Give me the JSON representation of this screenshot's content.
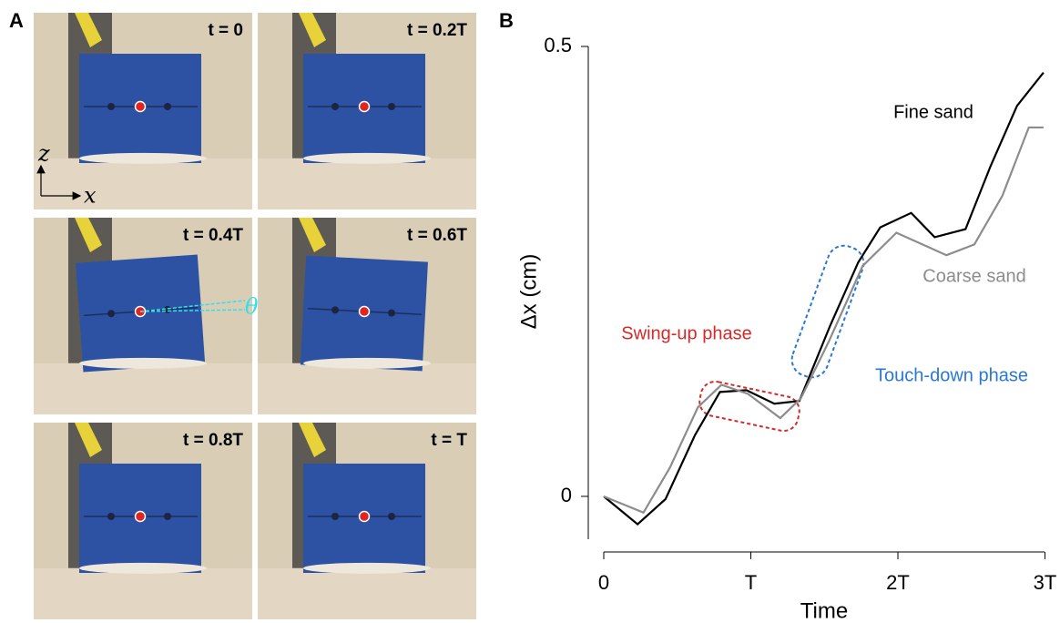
{
  "panel_labels": [
    "A",
    "B"
  ],
  "photos": {
    "labels": [
      "t = 0",
      "t = 0.2T",
      "t = 0.4T",
      "t = 0.6T",
      "t = 0.8T",
      "t = T"
    ],
    "axis_labels": [
      "z",
      "x"
    ],
    "angle_label": "θ"
  },
  "chart_data": {
    "type": "line",
    "xlabel": "Time",
    "ylabel": "Δx (cm)",
    "xlim": [
      0,
      3
    ],
    "xticks": [
      0,
      {
        "value": 1,
        "label": "T"
      },
      {
        "value": 2,
        "label": "2T"
      },
      {
        "value": 3,
        "label": "3T"
      }
    ],
    "ylim": [
      -0.047,
      0.5
    ],
    "yticks": [
      0,
      0.5
    ],
    "series": [
      {
        "name": "Fine sand",
        "color": "#000000",
        "x": [
          0,
          0.23,
          0.42,
          0.62,
          0.79,
          0.97,
          1.16,
          1.33,
          1.54,
          1.73,
          1.88,
          2.09,
          2.25,
          2.46,
          2.63,
          2.81,
          2.99
        ],
        "values": [
          0,
          -0.031,
          -0.003,
          0.068,
          0.116,
          0.118,
          0.103,
          0.106,
          0.19,
          0.26,
          0.299,
          0.315,
          0.288,
          0.297,
          0.367,
          0.434,
          0.471
        ]
      },
      {
        "name": "Coarse sand",
        "color": "#8c8c8c",
        "x": [
          0,
          0.27,
          0.45,
          0.64,
          0.8,
          0.98,
          1.2,
          1.34,
          1.53,
          1.76,
          1.99,
          2.33,
          2.52,
          2.71,
          2.89,
          2.99
        ],
        "values": [
          0,
          -0.018,
          0.032,
          0.099,
          0.124,
          0.114,
          0.087,
          0.109,
          0.172,
          0.256,
          0.293,
          0.268,
          0.28,
          0.334,
          0.41,
          0.41
        ]
      }
    ],
    "annotations": [
      {
        "text": "Swing-up phase",
        "color": "#d42a2a"
      },
      {
        "text": "Touch-down phase",
        "color": "#2a78d4"
      }
    ]
  }
}
